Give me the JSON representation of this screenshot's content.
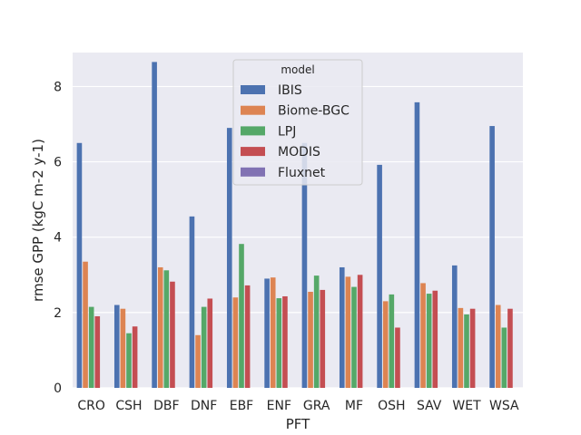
{
  "chart_data": {
    "type": "bar",
    "xlabel": "PFT",
    "ylabel": "rmse GPP (kgC m-2 y-1)",
    "ylim": [
      0,
      8.9
    ],
    "yticks": [
      0,
      2,
      4,
      6,
      8
    ],
    "grid": true,
    "legend": {
      "title": "model",
      "placement": "top-center"
    },
    "categories": [
      "CRO",
      "CSH",
      "DBF",
      "DNF",
      "EBF",
      "ENF",
      "GRA",
      "MF",
      "OSH",
      "SAV",
      "WET",
      "WSA"
    ],
    "series": [
      {
        "name": "IBIS",
        "color": "#4c72b0",
        "values": [
          6.5,
          2.2,
          8.65,
          4.55,
          6.9,
          2.9,
          6.5,
          3.2,
          5.92,
          7.58,
          3.25,
          6.95
        ]
      },
      {
        "name": "Biome-BGC",
        "color": "#dd8452",
        "values": [
          3.35,
          2.1,
          3.2,
          1.4,
          2.4,
          2.93,
          2.55,
          2.95,
          2.3,
          2.78,
          2.12,
          2.2
        ]
      },
      {
        "name": "LPJ",
        "color": "#55a868",
        "values": [
          2.15,
          1.45,
          3.12,
          2.15,
          3.82,
          2.38,
          2.98,
          2.68,
          2.48,
          2.5,
          1.95,
          1.6
        ]
      },
      {
        "name": "MODIS",
        "color": "#c44e52",
        "values": [
          1.9,
          1.63,
          2.82,
          2.37,
          2.72,
          2.43,
          2.6,
          3.0,
          1.6,
          2.58,
          2.1,
          2.1
        ]
      },
      {
        "name": "Fluxnet",
        "color": "#8172b3",
        "values": [
          0,
          0,
          0,
          0,
          0,
          0,
          0,
          0,
          0,
          0,
          0,
          0
        ]
      }
    ]
  }
}
